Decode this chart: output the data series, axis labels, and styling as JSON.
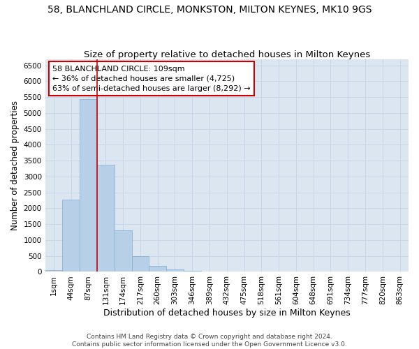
{
  "title": "58, BLANCHLAND CIRCLE, MONKSTON, MILTON KEYNES, MK10 9GS",
  "subtitle": "Size of property relative to detached houses in Milton Keynes",
  "xlabel": "Distribution of detached houses by size in Milton Keynes",
  "ylabel": "Number of detached properties",
  "categories": [
    "1sqm",
    "44sqm",
    "87sqm",
    "131sqm",
    "174sqm",
    "217sqm",
    "260sqm",
    "303sqm",
    "346sqm",
    "389sqm",
    "432sqm",
    "475sqm",
    "518sqm",
    "561sqm",
    "604sqm",
    "648sqm",
    "691sqm",
    "734sqm",
    "777sqm",
    "820sqm",
    "863sqm"
  ],
  "values": [
    60,
    2270,
    5430,
    3380,
    1300,
    490,
    185,
    80,
    40,
    0,
    0,
    0,
    0,
    0,
    0,
    0,
    0,
    0,
    0,
    0,
    0
  ],
  "bar_color": "#b8cfe8",
  "bar_edge_color": "#7aaed6",
  "vline_x": 2.5,
  "vline_color": "#cc0000",
  "annotation_text": "58 BLANCHLAND CIRCLE: 109sqm\n← 36% of detached houses are smaller (4,725)\n63% of semi-detached houses are larger (8,292) →",
  "annotation_box_color": "white",
  "annotation_box_edge_color": "#cc0000",
  "ylim": [
    0,
    6700
  ],
  "yticks": [
    0,
    500,
    1000,
    1500,
    2000,
    2500,
    3000,
    3500,
    4000,
    4500,
    5000,
    5500,
    6000,
    6500
  ],
  "grid_color": "#c8d4e8",
  "background_color": "#dce6f0",
  "footer_line1": "Contains HM Land Registry data © Crown copyright and database right 2024.",
  "footer_line2": "Contains public sector information licensed under the Open Government Licence v3.0.",
  "title_fontsize": 10,
  "subtitle_fontsize": 9.5,
  "xlabel_fontsize": 9,
  "ylabel_fontsize": 8.5,
  "tick_fontsize": 7.5,
  "annotation_fontsize": 8,
  "footer_fontsize": 6.5
}
